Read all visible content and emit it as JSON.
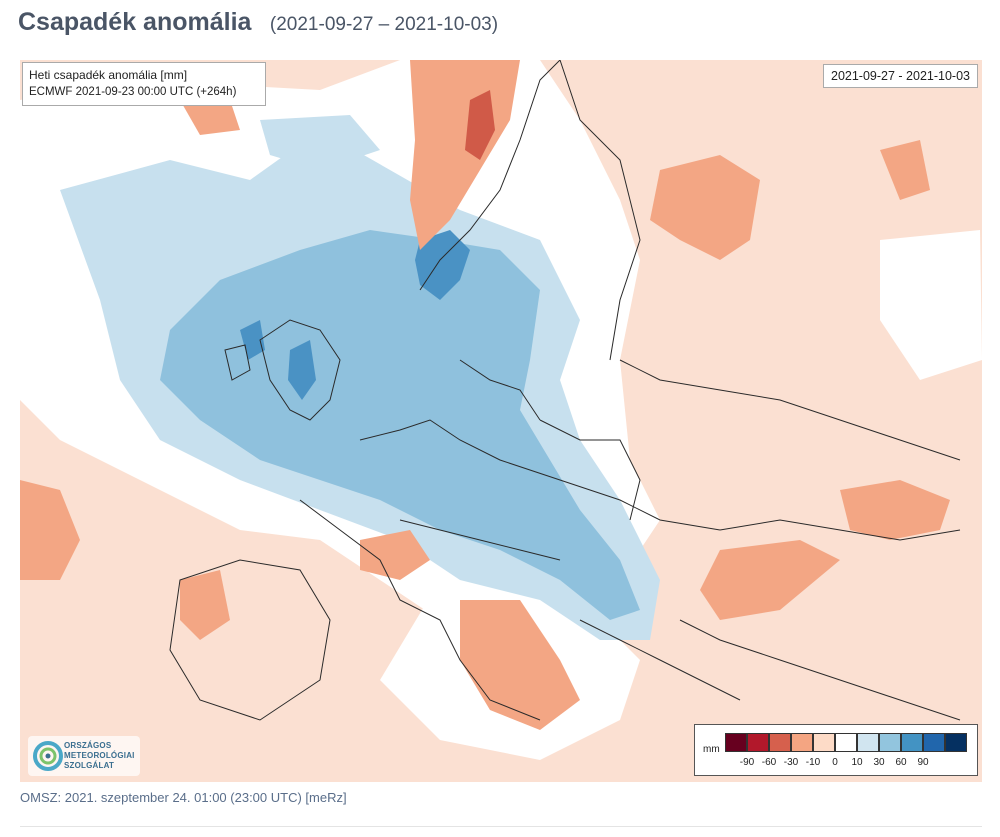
{
  "header": {
    "title": "Csapadék anomália",
    "date_range": "(2021-09-27 – 2021-10-03)"
  },
  "map": {
    "info_title": "Heti csapadék anomália [mm]",
    "info_model": "ECMWF 2021-09-23 00:00 UTC (+264h)",
    "period_label": "2021-09-27 - 2021-10-03",
    "legend": {
      "unit": "mm",
      "ticks": [
        "-90",
        "-60",
        "-30",
        "-10",
        "0",
        "10",
        "30",
        "60",
        "90"
      ],
      "colors": [
        "#67001f",
        "#b2182b",
        "#d6604d",
        "#f4a582",
        "#fddbc7",
        "#ffffff",
        "#d1e5f0",
        "#92c5de",
        "#4393c3",
        "#2166ac",
        "#053061"
      ]
    },
    "logo": {
      "icon": "omsz-logo-icon",
      "lines": [
        "ORSZÁGOS",
        "METEOROLÓGIAI",
        "SZOLGÁLAT"
      ]
    }
  },
  "footer": {
    "text": "OMSZ: 2021. szeptember 24. 01:00 (23:00  UTC)  [meRz]"
  }
}
